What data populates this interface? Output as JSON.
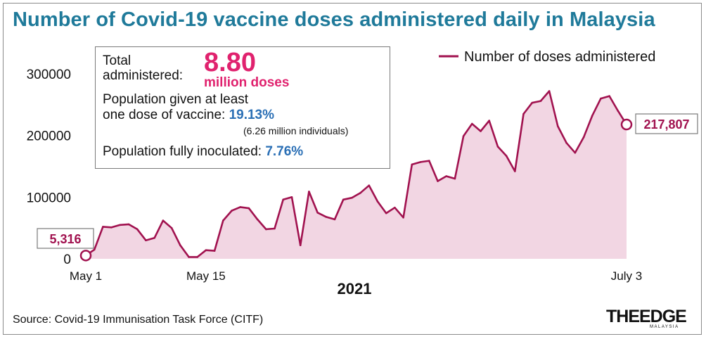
{
  "title": "Number of Covid-19 vaccine doses administered daily in Malaysia",
  "stats": {
    "total_label_line1": "Total",
    "total_label_line2": "administered:",
    "total_value": "8.80",
    "total_unit": "million doses",
    "one_dose_line1": "Population given at least",
    "one_dose_line2": "one dose of vaccine: ",
    "one_dose_value": "19.13%",
    "one_dose_individuals": "(6.26 million individuals)",
    "fully_label": "Population fully inoculated: ",
    "fully_value": "7.76%"
  },
  "source": "Source: Covid-19 Immunisation Task Force (CITF)",
  "logo": {
    "text": "THEEDGE",
    "sub": "MALAYSIA"
  },
  "colors": {
    "line": "#a1124f",
    "fill": "#f2d6e3",
    "title": "#1f7a9a",
    "highlight": "#e0226e",
    "stat_blue": "#2a6fb5"
  },
  "chart_data": {
    "type": "area",
    "xlabel": "2021",
    "ylabel": "",
    "ylim": [
      0,
      300000
    ],
    "yticks": [
      "0",
      "100000",
      "200000",
      "300000"
    ],
    "xticks": [
      {
        "index": 0,
        "label": "May 1"
      },
      {
        "index": 14,
        "label": "May 15"
      },
      {
        "index": 63,
        "label": "July 3"
      }
    ],
    "legend": "Number of doses administered",
    "legend_position": "top-right",
    "grid": false,
    "start_callout": "5,316",
    "end_callout": "217,807",
    "series": [
      {
        "name": "Number of doses administered",
        "x": [
          "May 1",
          "May 2",
          "May 3",
          "May 4",
          "May 5",
          "May 6",
          "May 7",
          "May 8",
          "May 9",
          "May 10",
          "May 11",
          "May 12",
          "May 13",
          "May 14",
          "May 15",
          "May 16",
          "May 17",
          "May 18",
          "May 19",
          "May 20",
          "May 21",
          "May 22",
          "May 23",
          "May 24",
          "May 25",
          "May 26",
          "May 27",
          "May 28",
          "May 29",
          "May 30",
          "May 31",
          "Jun 1",
          "Jun 2",
          "Jun 3",
          "Jun 4",
          "Jun 5",
          "Jun 6",
          "Jun 7",
          "Jun 8",
          "Jun 9",
          "Jun 10",
          "Jun 11",
          "Jun 12",
          "Jun 13",
          "Jun 14",
          "Jun 15",
          "Jun 16",
          "Jun 17",
          "Jun 18",
          "Jun 19",
          "Jun 20",
          "Jun 21",
          "Jun 22",
          "Jun 23",
          "Jun 24",
          "Jun 25",
          "Jun 26",
          "Jun 27",
          "Jun 28",
          "Jun 29",
          "Jun 30",
          "Jul 1",
          "Jul 2",
          "Jul 3"
        ],
        "values": [
          5316,
          15000,
          52000,
          51000,
          55000,
          56000,
          48000,
          30000,
          34000,
          62000,
          50000,
          22000,
          3000,
          3000,
          14000,
          13000,
          62000,
          78000,
          84000,
          82000,
          64000,
          48000,
          49000,
          96000,
          100000,
          22000,
          109000,
          75000,
          68000,
          64000,
          96000,
          99000,
          107000,
          119000,
          93000,
          74000,
          83000,
          67000,
          153000,
          157000,
          159000,
          126000,
          134000,
          130000,
          199000,
          219000,
          207000,
          224000,
          182000,
          167000,
          142000,
          235000,
          253000,
          256000,
          272000,
          215000,
          188000,
          172000,
          197000,
          232000,
          260000,
          264000,
          240000,
          217807
        ]
      }
    ]
  }
}
